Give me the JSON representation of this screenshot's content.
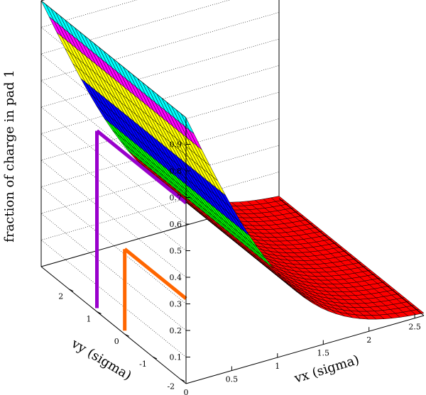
{
  "chart_data": {
    "type": "surface",
    "title": "",
    "xlabel": "vx (sigma)",
    "ylabel": "vy (sigma)",
    "zlabel": "fraction of charge in pad 1",
    "x_range": [
      0,
      2.6
    ],
    "y_range": [
      -2.2,
      3.0
    ],
    "z_range": [
      0,
      1.0
    ],
    "x_ticks": [
      "0",
      "0.5",
      "1",
      "1.5",
      "2",
      "2.5"
    ],
    "y_ticks": [
      "-2",
      "-1",
      "0",
      "1",
      "2"
    ],
    "z_ticks": [
      "0.1",
      "0.2",
      "0.3",
      "0.4",
      "0.5",
      "0.6",
      "0.7",
      "0.8",
      "0.9"
    ],
    "function": "fraction = 1 - Phi(vx): falls from ~1 at vx = 0 to ~0 at vx = 2.6, independent of vy",
    "grid": "mesh 30 x 30",
    "color_bands": [
      {
        "from": 0.0,
        "to": 0.333,
        "color": "#ff0000"
      },
      {
        "from": 0.333,
        "to": 0.5,
        "color": "#00ff00"
      },
      {
        "from": 0.5,
        "to": 0.667,
        "color": "#0000ff"
      },
      {
        "from": 0.667,
        "to": 0.833,
        "color": "#ffff00"
      },
      {
        "from": 0.833,
        "to": 0.95,
        "color": "#ff00ff"
      },
      {
        "from": 0.95,
        "to": 1.0,
        "color": "#00ffff"
      }
    ],
    "guide_lines": [
      {
        "vy": 1.0,
        "z": 0.68,
        "color": "#9900cc"
      },
      {
        "vy": 0.0,
        "z": 0.32,
        "color": "#ff6600"
      }
    ]
  }
}
